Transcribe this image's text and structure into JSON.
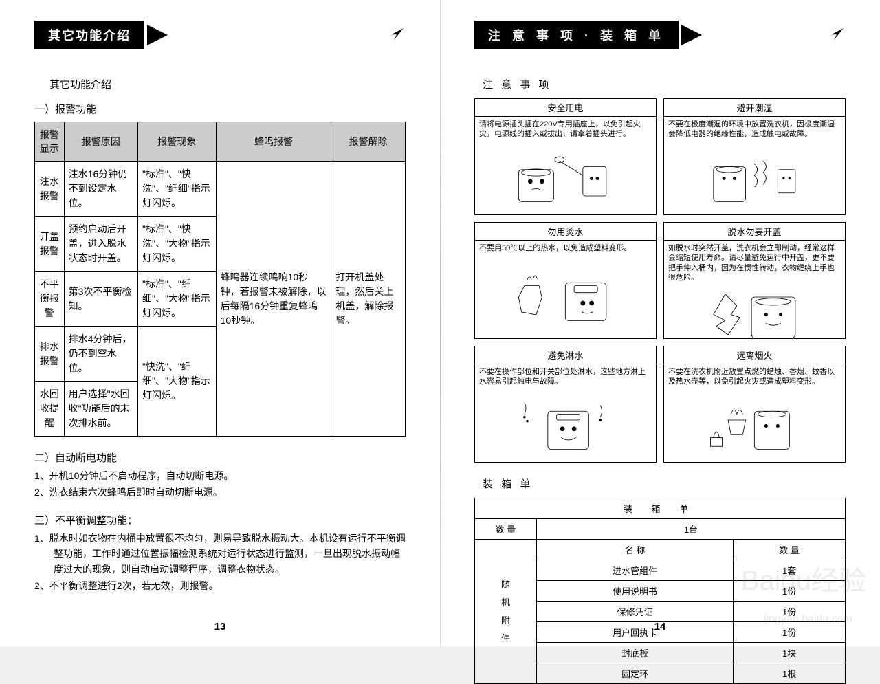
{
  "left": {
    "header_title": "其它功能介绍",
    "subtitle": "其它功能介绍",
    "sec1": "一）报警功能",
    "alarm_table": {
      "headers": [
        "报警显示",
        "报警原因",
        "报警现象",
        "蜂鸣报警",
        "报警解除"
      ],
      "rows": [
        {
          "c1": "注水报警",
          "c2": "注水16分钟仍不到设定水位。",
          "c3": "\"标准\"、\"快洗\"、\"纤细\"指示灯闪烁。"
        },
        {
          "c1": "开盖报警",
          "c2": "预约启动后开盖，进入脱水状态时开盖。",
          "c3": "\"标准\"、\"快洗\"、\"大物\"指示灯闪烁。"
        },
        {
          "c1": "不平衡报警",
          "c2": "第3次不平衡检知。",
          "c3": "\"标准\"、\"纤细\"、\"大物\"指示灯闪烁。"
        },
        {
          "c1": "排水报警",
          "c2": "排水4分钟后，仍不到空水位。",
          "c3_merge_top": true
        },
        {
          "c1": "水回收提醒",
          "c2": "用户选择\"水回收\"功能后的末次排水前。",
          "c3": "\"快洗\"、\"纤细\"、\"大物\"指示灯闪烁。",
          "c3_span": 2
        }
      ],
      "buzz": "蜂鸣器连续鸣响10秒钟，若报警未被解除，以后每隔16分钟重复蜂鸣10秒钟。",
      "release": "打开机盖处理，然后关上机盖，解除报警。"
    },
    "sec2": "二）自动断电功能",
    "sec2_items": [
      "1、开机10分钟后不启动程序，自动切断电源。",
      "2、洗衣结束六次蜂鸣后即时自动切断电源。"
    ],
    "sec3": "三）不平衡调整功能：",
    "sec3_items": [
      "1、脱水时如衣物在内桶中放置很不均匀，则易导致脱水振动大。本机设有运行不平衡调整功能，工作时通过位置振幅检测系统对运行状态进行监测，一旦出现脱水振动幅度过大的现象，则自动启动调整程序，调整衣物状态。",
      "2、不平衡调整进行2次，若无效，则报警。"
    ],
    "page_num": "13"
  },
  "right": {
    "header_title": "注 意 事 项 · 装 箱 单",
    "sec_cautions": "注 意 事 项",
    "warnings": [
      {
        "title": "安全用电",
        "desc": "请将电源插头插在220V专用插座上，以免引起火灾，电源线的插入或拔出，请拿着插头进行。"
      },
      {
        "title": "避开潮湿",
        "desc": "不要在极度潮湿的环境中放置洗衣机，因极度潮湿会降低电器的绝缘性能，造成触电或故障。"
      },
      {
        "title": "勿用烫水",
        "desc": "不要用50℃以上的热水，以免造成塑料变形。"
      },
      {
        "title": "脱水勿要开盖",
        "desc": "如脱水时突然开盖，洗衣机会立即制动，经常这样会缩短使用寿命。请尽量避免运行中开盖，更不要把手伸入桶内，因为在惯性转动，衣物缠绕上手也很危险。"
      },
      {
        "title": "避免淋水",
        "desc": "不要在操作部位和开关部位处淋水，这些地方淋上水容易引起触电与故障。"
      },
      {
        "title": "远离烟火",
        "desc": "不要在洗衣机附近放置点燃的蜡烛、香烟、蚊香以及热水壶等，以免引起火灾或造成塑料变形。"
      }
    ],
    "sec_packing": "装 箱 单",
    "pack_table": {
      "title": "装 箱 单",
      "qty_label": "数 量",
      "qty_value": "1台",
      "side_label": "随机附件",
      "cols": [
        "名 称",
        "数 量"
      ],
      "rows": [
        [
          "进水管组件",
          "1套"
        ],
        [
          "使用说明书",
          "1份"
        ],
        [
          "保修凭证",
          "1份"
        ],
        [
          "用户回执卡",
          "1份"
        ],
        [
          "封底板",
          "1块"
        ],
        [
          "固定环",
          "1根"
        ]
      ]
    },
    "page_num": "14"
  },
  "watermark": "Baidu经验",
  "watermark_url": "jingyan.baidu.com"
}
